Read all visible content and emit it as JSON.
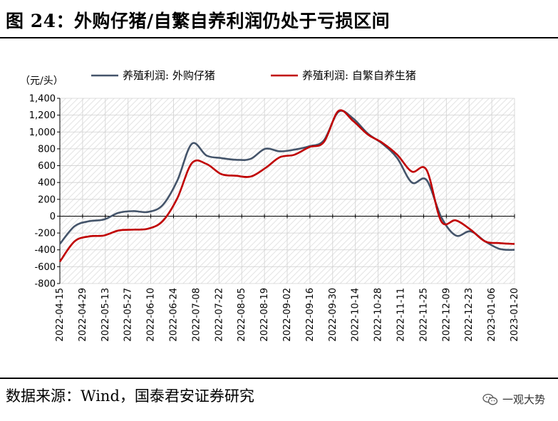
{
  "title": "图 24：外购仔猪/自繁自养利润仍处于亏损区间",
  "source": "数据来源：Wind，国泰君安证券研究",
  "watermark": "一观大势",
  "chart_data": {
    "type": "line",
    "ylabel": "（元/头）",
    "ylim": [
      -800,
      1400
    ],
    "yticks": [
      "1,400",
      "1,200",
      "1,000",
      "800",
      "600",
      "400",
      "200",
      "0",
      "-200",
      "-400",
      "-600",
      "-800"
    ],
    "ytick_values": [
      1400,
      1200,
      1000,
      800,
      600,
      400,
      200,
      0,
      -200,
      -400,
      -600,
      -800
    ],
    "xticks": [
      "2022-04-15",
      "2022-04-29",
      "2022-05-13",
      "2022-05-27",
      "2022-06-10",
      "2022-06-24",
      "2022-07-08",
      "2022-07-22",
      "2022-08-05",
      "2022-08-19",
      "2022-09-02",
      "2022-09-16",
      "2022-09-30",
      "2022-10-14",
      "2022-10-28",
      "2022-11-11",
      "2022-11-25",
      "2022-12-09",
      "2022-12-23",
      "2023-01-06",
      "2023-01-20"
    ],
    "grid": true,
    "legend_position": "top",
    "series": [
      {
        "name": "养殖利润: 外购仔猪",
        "color": "#44546A",
        "values": [
          -330,
          -120,
          -60,
          -40,
          40,
          60,
          50,
          130,
          420,
          860,
          720,
          690,
          670,
          680,
          800,
          770,
          790,
          830,
          900,
          1240,
          1160,
          980,
          860,
          690,
          400,
          430,
          -10,
          -230,
          -180,
          -300,
          -390,
          -400
        ]
      },
      {
        "name": "养殖利润: 自繁自养生猪",
        "color": "#C00000",
        "values": [
          -540,
          -300,
          -240,
          -230,
          -170,
          -160,
          -150,
          -60,
          210,
          630,
          620,
          500,
          480,
          470,
          570,
          700,
          730,
          820,
          880,
          1250,
          1130,
          970,
          870,
          730,
          530,
          550,
          -60,
          -50,
          -160,
          -300,
          -320,
          -330
        ]
      }
    ]
  }
}
